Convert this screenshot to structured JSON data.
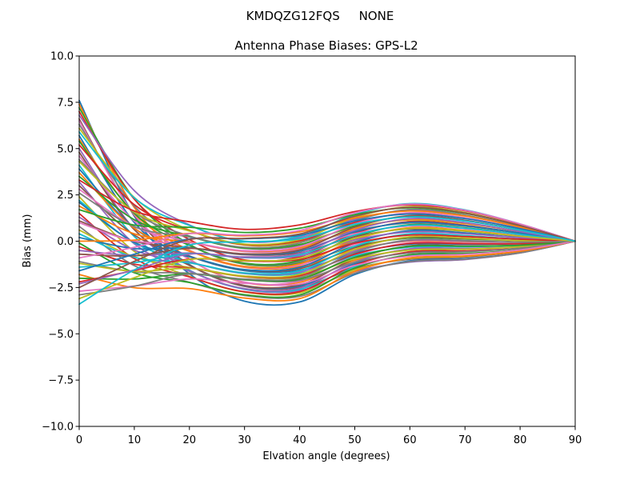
{
  "figure": {
    "background": "#ffffff",
    "spine_color": "#000000",
    "text_color": "#000000"
  },
  "chart_data": {
    "type": "line",
    "suptitle": "KMDQZG12FQS     NONE",
    "title": "Antenna Phase Biases: GPS-L2",
    "xlabel": "Elvation angle (degrees)",
    "ylabel": "Bias (mm)",
    "xlim": [
      0,
      90
    ],
    "ylim": [
      -10,
      10
    ],
    "grid": false,
    "legend": "none",
    "x_ticks": [
      0,
      10,
      20,
      30,
      40,
      50,
      60,
      70,
      80,
      90
    ],
    "x_tick_labels": [
      "0",
      "10",
      "20",
      "30",
      "40",
      "50",
      "60",
      "70",
      "80",
      "90"
    ],
    "y_ticks": [
      10,
      7.5,
      5,
      2.5,
      0,
      -2.5,
      -5,
      -7.5,
      -10
    ],
    "y_tick_labels": [
      "10.0",
      "7.5",
      "5.0",
      "2.5",
      "0.0",
      "−2.5",
      "−5.0",
      "−7.5",
      "−10.0"
    ],
    "x": [
      0,
      10,
      20,
      30,
      40,
      50,
      60,
      70,
      80,
      90
    ],
    "series": [
      {
        "color": "#1f77b4",
        "values": [
          7.6,
          1.35,
          -1.76,
          -3.24,
          -3.28,
          -1.8,
          -1.06,
          -0.94,
          -0.62,
          0
        ]
      },
      {
        "color": "#ff7f0e",
        "values": [
          7.4,
          1.82,
          -0.96,
          -2.23,
          -2.22,
          -1.03,
          -0.44,
          -0.41,
          -0.3,
          0
        ]
      },
      {
        "color": "#2ca02c",
        "values": [
          7.2,
          2.28,
          -0.17,
          -1.24,
          -1.18,
          -0.28,
          0.17,
          0.12,
          0.03,
          0
        ]
      },
      {
        "color": "#d62728",
        "values": [
          7.0,
          2.27,
          0.09,
          -1.01,
          -0.84,
          0.43,
          1.06,
          0.86,
          0.44,
          0
        ]
      },
      {
        "color": "#9467bd",
        "values": [
          6.8,
          2.73,
          0.88,
          -0.02,
          0.2,
          1.18,
          1.67,
          1.39,
          0.76,
          0
        ]
      },
      {
        "color": "#8c564b",
        "values": [
          6.6,
          1.4,
          -1.26,
          -2.44,
          -2.49,
          -1.48,
          -0.97,
          -0.85,
          -0.55,
          0
        ]
      },
      {
        "color": "#e377c2",
        "values": [
          6.5,
          1.43,
          -0.99,
          -2.21,
          -2.15,
          -0.77,
          -0.08,
          -0.11,
          -0.13,
          0
        ]
      },
      {
        "color": "#7f7f7f",
        "values": [
          6.3,
          1.89,
          -0.2,
          -1.22,
          -1.11,
          -0.02,
          0.53,
          0.42,
          0.19,
          0
        ]
      },
      {
        "color": "#bcbd22",
        "values": [
          6.1,
          2.36,
          0.6,
          -0.21,
          -0.05,
          0.75,
          1.15,
          0.95,
          0.52,
          0
        ]
      },
      {
        "color": "#17becf",
        "values": [
          5.9,
          2.34,
          0.85,
          0.0,
          0.27,
          1.44,
          2.03,
          1.69,
          0.93,
          0
        ]
      },
      {
        "color": "#1f77b4",
        "values": [
          5.7,
          1.01,
          -1.28,
          -2.41,
          -2.42,
          -1.21,
          -0.61,
          -0.55,
          -0.38,
          0
        ]
      },
      {
        "color": "#ff7f0e",
        "values": [
          5.5,
          1.48,
          -0.49,
          -1.41,
          -1.36,
          -0.45,
          0.01,
          -0.02,
          -0.06,
          0
        ]
      },
      {
        "color": "#2ca02c",
        "values": [
          5.4,
          1.5,
          -0.23,
          -1.19,
          -1.04,
          0.25,
          0.89,
          0.72,
          0.36,
          0
        ]
      },
      {
        "color": "#d62728",
        "values": [
          5.2,
          1.97,
          0.57,
          -0.19,
          0.02,
          1.01,
          1.51,
          1.25,
          0.68,
          0
        ]
      },
      {
        "color": "#9467bd",
        "values": [
          5.0,
          0.64,
          -1.56,
          -2.6,
          -2.67,
          -1.64,
          -1.13,
          -0.99,
          -0.63,
          0
        ]
      },
      {
        "color": "#8c564b",
        "values": [
          4.8,
          0.62,
          -1.31,
          -2.39,
          -2.35,
          -0.95,
          -0.25,
          -0.25,
          -0.22,
          0
        ]
      },
      {
        "color": "#e377c2",
        "values": [
          4.6,
          1.09,
          -0.51,
          -1.38,
          -1.29,
          -0.18,
          0.37,
          0.28,
          0.11,
          0
        ]
      },
      {
        "color": "#7f7f7f",
        "values": [
          4.4,
          1.55,
          0.28,
          -0.39,
          -0.25,
          0.57,
          0.98,
          0.81,
          0.43,
          0
        ]
      },
      {
        "color": "#bcbd22",
        "values": [
          4.3,
          1.58,
          0.55,
          -0.16,
          0.09,
          1.28,
          1.87,
          1.55,
          0.85,
          0
        ]
      },
      {
        "color": "#17becf",
        "values": [
          4.1,
          0.25,
          -1.59,
          -2.58,
          -2.6,
          -1.38,
          -0.77,
          -0.69,
          -0.46,
          0
        ]
      },
      {
        "color": "#1f77b4",
        "values": [
          3.9,
          0.71,
          -0.8,
          -1.59,
          -1.56,
          -0.63,
          -0.16,
          -0.16,
          -0.14,
          0
        ]
      },
      {
        "color": "#ff7f0e",
        "values": [
          3.7,
          0.7,
          -0.54,
          -1.36,
          -1.22,
          0.08,
          0.73,
          0.58,
          0.28,
          0
        ]
      },
      {
        "color": "#2ca02c",
        "values": [
          3.5,
          1.16,
          0.25,
          -0.37,
          -0.18,
          0.83,
          1.34,
          1.11,
          0.6,
          0
        ]
      },
      {
        "color": "#d62728",
        "values": [
          3.3,
          1.63,
          1.05,
          0.64,
          0.88,
          1.6,
          1.96,
          1.64,
          0.92,
          0
        ]
      },
      {
        "color": "#9467bd",
        "values": [
          3.2,
          -0.14,
          -1.62,
          -2.56,
          -2.53,
          -1.12,
          -0.41,
          -0.39,
          -0.3,
          0
        ]
      },
      {
        "color": "#8c564b",
        "values": [
          3.0,
          0.33,
          -0.82,
          -1.55,
          -1.48,
          -0.35,
          0.21,
          0.15,
          0.03,
          0
        ]
      },
      {
        "color": "#e377c2",
        "values": [
          2.8,
          0.79,
          -0.03,
          -0.56,
          -0.43,
          0.4,
          0.82,
          0.67,
          0.35,
          0
        ]
      },
      {
        "color": "#7f7f7f",
        "values": [
          2.6,
          0.78,
          0.23,
          -0.33,
          -0.09,
          1.11,
          1.71,
          1.41,
          0.77,
          0
        ]
      },
      {
        "color": "#bcbd22",
        "values": [
          2.4,
          -0.55,
          -1.9,
          -2.75,
          -2.79,
          -1.55,
          -0.93,
          -0.82,
          -0.54,
          0
        ]
      },
      {
        "color": "#17becf",
        "values": [
          2.2,
          -0.09,
          -1.11,
          -1.75,
          -1.74,
          -0.79,
          -0.32,
          -0.3,
          -0.22,
          0
        ]
      },
      {
        "color": "#1f77b4",
        "values": [
          2.1,
          -0.06,
          -0.84,
          -1.53,
          -1.41,
          -0.09,
          0.57,
          0.45,
          0.2,
          0
        ]
      },
      {
        "color": "#ff7f0e",
        "values": [
          1.9,
          0.4,
          -0.05,
          -0.53,
          -0.36,
          0.67,
          1.18,
          0.97,
          0.52,
          0
        ]
      },
      {
        "color": "#2ca02c",
        "values": [
          1.7,
          0.87,
          0.75,
          0.47,
          0.7,
          1.43,
          1.8,
          1.5,
          0.84,
          0
        ]
      },
      {
        "color": "#d62728",
        "values": [
          1.5,
          -0.94,
          -1.93,
          -2.73,
          -2.72,
          -1.29,
          -0.57,
          -0.52,
          -0.38,
          0
        ]
      },
      {
        "color": "#9467bd",
        "values": [
          1.3,
          -0.48,
          -1.14,
          -1.73,
          -1.67,
          -0.53,
          0.04,
          0.0,
          -0.06,
          0
        ]
      },
      {
        "color": "#8c564b",
        "values": [
          1.1,
          -0.01,
          -0.34,
          -0.73,
          -0.62,
          0.24,
          0.66,
          0.54,
          0.27,
          0
        ]
      },
      {
        "color": "#e377c2",
        "values": [
          1.0,
          0.01,
          -0.08,
          -0.51,
          -0.29,
          0.93,
          1.54,
          1.27,
          0.68,
          0
        ]
      },
      {
        "color": "#7f7f7f",
        "values": [
          0.8,
          -1.32,
          -2.22,
          -2.93,
          -2.98,
          -1.73,
          -1.1,
          -0.97,
          -0.63,
          0
        ]
      },
      {
        "color": "#bcbd22",
        "values": [
          0.6,
          -0.85,
          -1.42,
          -1.92,
          -1.93,
          -0.96,
          -0.48,
          -0.43,
          -0.3,
          0
        ]
      },
      {
        "color": "#17becf",
        "values": [
          0.4,
          -0.87,
          -1.17,
          -1.71,
          -1.6,
          -0.27,
          0.4,
          0.3,
          0.11,
          0
        ]
      },
      {
        "color": "#1f77b4",
        "values": [
          0.2,
          -0.4,
          -0.37,
          -0.7,
          -0.54,
          0.5,
          1.02,
          0.83,
          0.44,
          0
        ]
      },
      {
        "color": "#ff7f0e",
        "values": [
          0.0,
          0.06,
          0.42,
          0.29,
          0.5,
          1.25,
          1.63,
          1.36,
          0.76,
          0
        ]
      },
      {
        "color": "#2ca02c",
        "values": [
          -0.1,
          -1.7,
          -2.23,
          -2.89,
          -2.9,
          -1.45,
          -0.73,
          -0.66,
          -0.46,
          0
        ]
      },
      {
        "color": "#d62728",
        "values": [
          -0.3,
          -1.24,
          -1.44,
          -1.9,
          -1.86,
          -0.7,
          -0.12,
          -0.13,
          -0.14,
          0
        ]
      },
      {
        "color": "#9467bd",
        "values": [
          -0.5,
          -0.77,
          -0.64,
          -0.89,
          -0.8,
          0.07,
          0.5,
          0.4,
          0.19,
          0
        ]
      },
      {
        "color": "#8c564b",
        "values": [
          -0.7,
          -0.79,
          -0.39,
          -0.68,
          -0.47,
          0.76,
          1.38,
          1.13,
          0.6,
          0
        ]
      },
      {
        "color": "#e377c2",
        "values": [
          -0.9,
          -0.33,
          0.41,
          0.33,
          0.58,
          1.53,
          2.0,
          1.67,
          0.93,
          0
        ]
      },
      {
        "color": "#7f7f7f",
        "values": [
          -1.1,
          -1.65,
          -1.73,
          -2.09,
          -2.11,
          -1.13,
          -0.64,
          -0.57,
          -0.38,
          0
        ]
      },
      {
        "color": "#bcbd22",
        "values": [
          -1.2,
          -1.63,
          -1.47,
          -1.88,
          -1.79,
          -0.44,
          0.24,
          0.17,
          0.03,
          0
        ]
      },
      {
        "color": "#17becf",
        "values": [
          -1.4,
          -1.16,
          -0.67,
          -0.87,
          -0.73,
          0.33,
          0.86,
          0.7,
          0.36,
          0
        ]
      },
      {
        "color": "#1f77b4",
        "values": [
          -1.6,
          -0.7,
          0.12,
          0.13,
          0.32,
          1.09,
          1.47,
          1.22,
          0.68,
          0
        ]
      },
      {
        "color": "#ff7f0e",
        "values": [
          -1.8,
          -2.51,
          -2.56,
          -3.07,
          -3.1,
          -1.63,
          -0.9,
          -0.8,
          -0.54,
          0
        ]
      },
      {
        "color": "#2ca02c",
        "values": [
          -2.0,
          -2.04,
          -1.76,
          -2.07,
          -2.04,
          -0.87,
          -0.28,
          -0.27,
          -0.22,
          0
        ]
      },
      {
        "color": "#d62728",
        "values": [
          -2.2,
          -1.58,
          -0.97,
          -1.07,
          -0.99,
          -0.11,
          0.33,
          0.25,
          0.11,
          0
        ]
      },
      {
        "color": "#9467bd",
        "values": [
          -2.3,
          -1.55,
          -0.7,
          -0.85,
          -0.66,
          0.59,
          1.22,
          1.0,
          0.52,
          0
        ]
      },
      {
        "color": "#8c564b",
        "values": [
          -2.5,
          -1.09,
          0.09,
          0.15,
          0.39,
          1.35,
          1.83,
          1.52,
          0.84,
          0
        ]
      },
      {
        "color": "#e377c2",
        "values": [
          -2.7,
          -2.42,
          -2.04,
          -2.27,
          -2.31,
          -1.31,
          -0.81,
          -0.71,
          -0.47,
          0
        ]
      },
      {
        "color": "#7f7f7f",
        "values": [
          -2.9,
          -2.43,
          -1.78,
          -2.04,
          -1.97,
          -0.6,
          0.08,
          0.03,
          -0.05,
          0
        ]
      },
      {
        "color": "#bcbd22",
        "values": [
          -3.1,
          -1.97,
          -0.99,
          -1.05,
          -0.92,
          0.15,
          0.69,
          0.55,
          0.27,
          0
        ]
      },
      {
        "color": "#17becf",
        "values": [
          -3.4,
          -1.55,
          -0.21,
          -0.04,
          0.13,
          0.92,
          1.31,
          1.09,
          0.6,
          0
        ]
      }
    ]
  }
}
